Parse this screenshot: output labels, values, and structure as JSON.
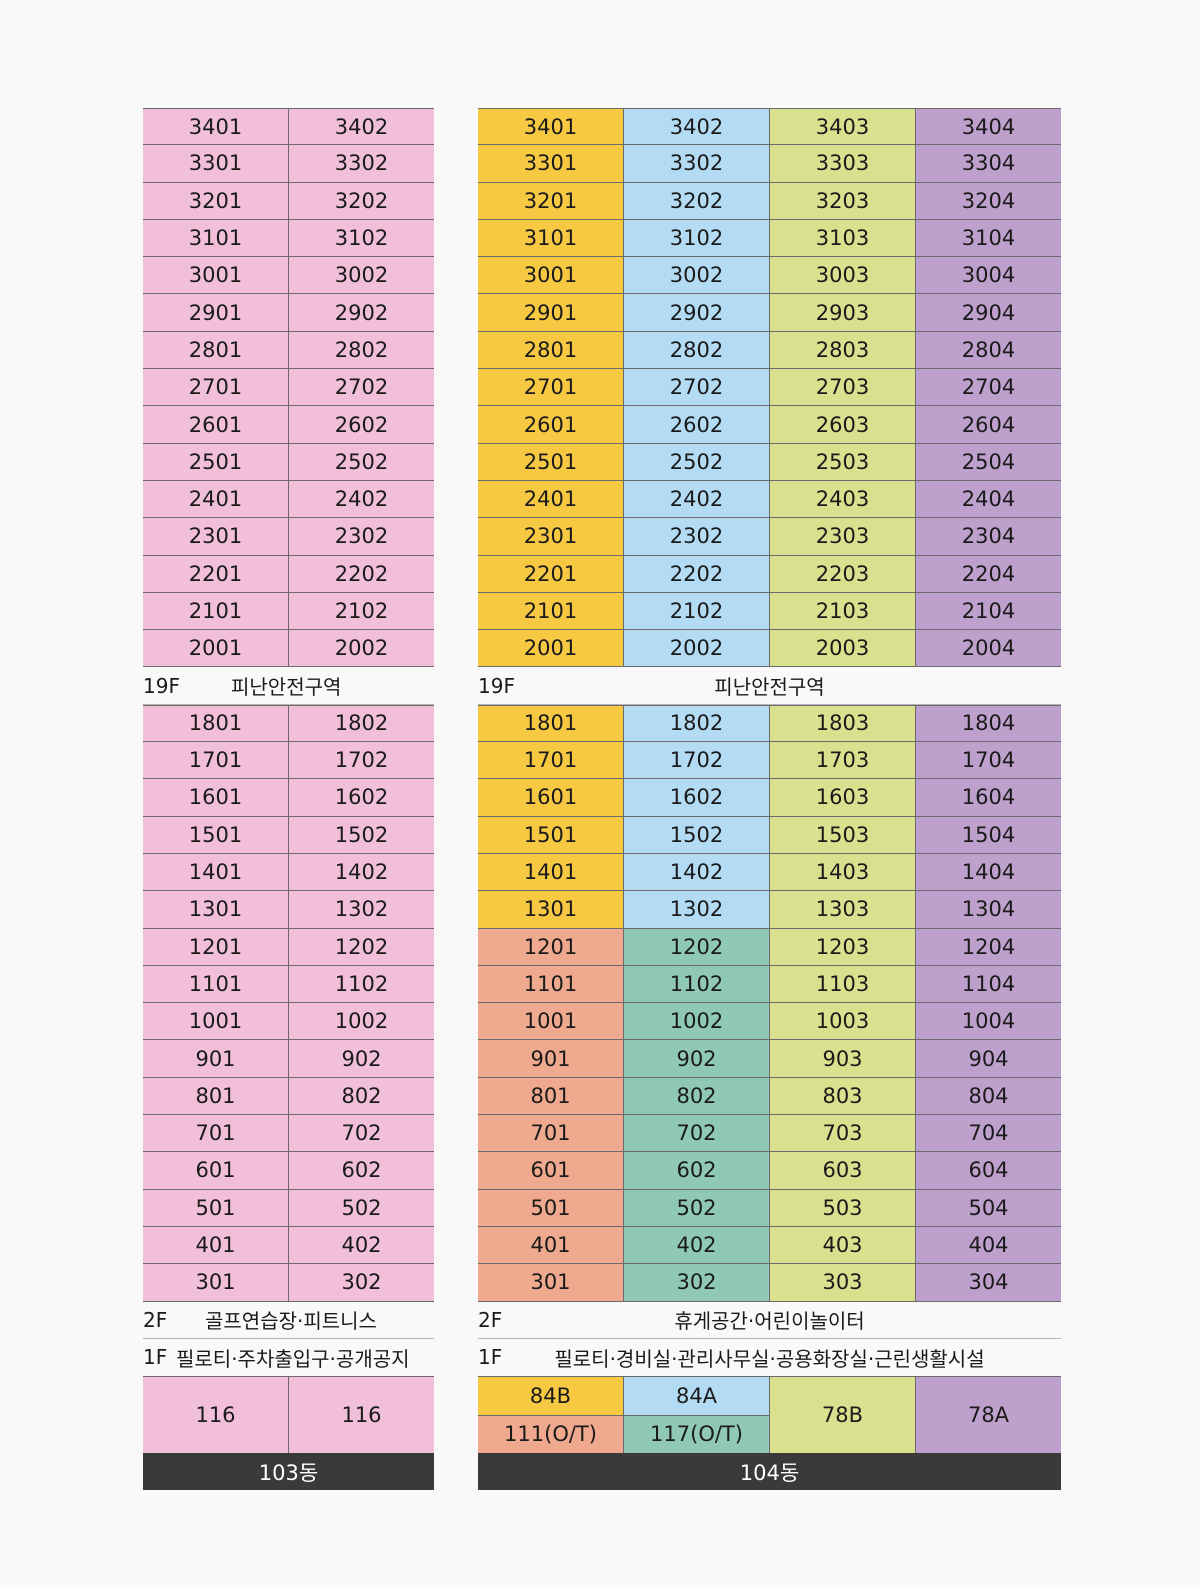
{
  "colors": {
    "pink": "#f1bfd9",
    "yellow": "#f7c842",
    "blue": "#b3dcf4",
    "green": "#d9e18f",
    "purple": "#bda0cb",
    "salmon": "#efa98e",
    "teal": "#8fc9b6",
    "footer": "#3a3a3a"
  },
  "b103": {
    "upper_floors": [
      [
        "3401",
        "3402"
      ],
      [
        "3301",
        "3302"
      ],
      [
        "3201",
        "3202"
      ],
      [
        "3101",
        "3102"
      ],
      [
        "3001",
        "3002"
      ],
      [
        "2901",
        "2902"
      ],
      [
        "2801",
        "2802"
      ],
      [
        "2701",
        "2702"
      ],
      [
        "2601",
        "2602"
      ],
      [
        "2501",
        "2502"
      ],
      [
        "2401",
        "2402"
      ],
      [
        "2301",
        "2302"
      ],
      [
        "2201",
        "2202"
      ],
      [
        "2101",
        "2102"
      ],
      [
        "2001",
        "2002"
      ]
    ],
    "refuge": {
      "floor": "19F",
      "desc": "피난안전구역"
    },
    "lower_floors": [
      [
        "1801",
        "1802"
      ],
      [
        "1701",
        "1702"
      ],
      [
        "1601",
        "1602"
      ],
      [
        "1501",
        "1502"
      ],
      [
        "1401",
        "1402"
      ],
      [
        "1301",
        "1302"
      ],
      [
        "1201",
        "1202"
      ],
      [
        "1101",
        "1102"
      ],
      [
        "1001",
        "1002"
      ],
      [
        "901",
        "902"
      ],
      [
        "801",
        "802"
      ],
      [
        "701",
        "702"
      ],
      [
        "601",
        "602"
      ],
      [
        "501",
        "502"
      ],
      [
        "401",
        "402"
      ],
      [
        "301",
        "302"
      ]
    ],
    "f2": {
      "floor": "2F",
      "desc": "골프연습장·피트니스"
    },
    "f1": {
      "floor": "1F",
      "desc": "필로티·주차출입구·공개공지"
    },
    "base": [
      "116",
      "116"
    ],
    "name": "103동"
  },
  "b104": {
    "upper_floors": [
      [
        "3401",
        "3402",
        "3403",
        "3404"
      ],
      [
        "3301",
        "3302",
        "3303",
        "3304"
      ],
      [
        "3201",
        "3202",
        "3203",
        "3204"
      ],
      [
        "3101",
        "3102",
        "3103",
        "3104"
      ],
      [
        "3001",
        "3002",
        "3003",
        "3004"
      ],
      [
        "2901",
        "2902",
        "2903",
        "2904"
      ],
      [
        "2801",
        "2802",
        "2803",
        "2804"
      ],
      [
        "2701",
        "2702",
        "2703",
        "2704"
      ],
      [
        "2601",
        "2602",
        "2603",
        "2604"
      ],
      [
        "2501",
        "2502",
        "2503",
        "2504"
      ],
      [
        "2401",
        "2402",
        "2403",
        "2404"
      ],
      [
        "2301",
        "2302",
        "2303",
        "2304"
      ],
      [
        "2201",
        "2202",
        "2203",
        "2204"
      ],
      [
        "2101",
        "2102",
        "2103",
        "2104"
      ],
      [
        "2001",
        "2002",
        "2003",
        "2004"
      ]
    ],
    "refuge": {
      "floor": "19F",
      "desc": "피난안전구역"
    },
    "lower_floors": [
      [
        "1801",
        "1802",
        "1803",
        "1804"
      ],
      [
        "1701",
        "1702",
        "1703",
        "1704"
      ],
      [
        "1601",
        "1602",
        "1603",
        "1604"
      ],
      [
        "1501",
        "1502",
        "1503",
        "1504"
      ],
      [
        "1401",
        "1402",
        "1403",
        "1404"
      ],
      [
        "1301",
        "1302",
        "1303",
        "1304"
      ],
      [
        "1201",
        "1202",
        "1203",
        "1204"
      ],
      [
        "1101",
        "1102",
        "1103",
        "1104"
      ],
      [
        "1001",
        "1002",
        "1003",
        "1004"
      ],
      [
        "901",
        "902",
        "903",
        "904"
      ],
      [
        "801",
        "802",
        "803",
        "804"
      ],
      [
        "701",
        "702",
        "703",
        "704"
      ],
      [
        "601",
        "602",
        "603",
        "604"
      ],
      [
        "501",
        "502",
        "503",
        "504"
      ],
      [
        "401",
        "402",
        "403",
        "404"
      ],
      [
        "301",
        "302",
        "303",
        "304"
      ]
    ],
    "f2": {
      "floor": "2F",
      "desc": "휴게공간·어린이놀이터"
    },
    "f1": {
      "floor": "1F",
      "desc": "필로티·경비실·관리사무실·공용화장실·근린생활시설"
    },
    "base": {
      "col1_top": "84B",
      "col1_bottom": "111(O/T)",
      "col2_top": "84A",
      "col2_bottom": "117(O/T)",
      "col3": "78B",
      "col4": "78A"
    },
    "name": "104동"
  }
}
